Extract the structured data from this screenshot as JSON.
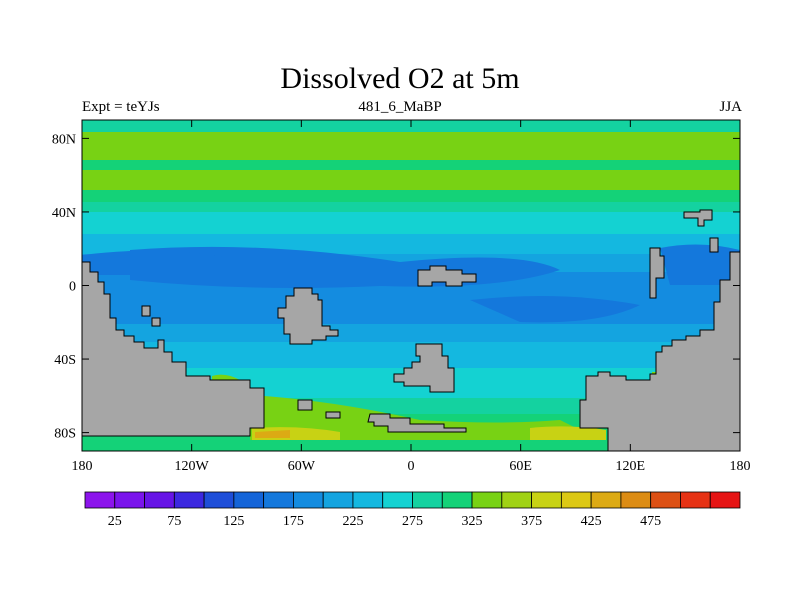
{
  "title": "Dissolved O2 at 5m",
  "subtitle_left": "Expt = teYJs",
  "subtitle_center": "481_6_MaBP",
  "subtitle_right": "JJA",
  "map": {
    "lon_ticks": [
      "180",
      "120W",
      "60W",
      "0",
      "60E",
      "120E",
      "180"
    ],
    "lat_ticks": [
      "80N",
      "40N",
      "0",
      "40S",
      "80S"
    ],
    "land_color": "#a6a6a6"
  },
  "colorbar": {
    "colors": [
      "#8c14ec",
      "#7a14ec",
      "#6614e6",
      "#3c28e0",
      "#1e4ed8",
      "#1464d8",
      "#1478dc",
      "#148ce0",
      "#14a4e0",
      "#14b8e0",
      "#14d2d2",
      "#14d2a0",
      "#14d278",
      "#78d214",
      "#a0d214",
      "#c8d214",
      "#dcc814",
      "#dcaa14",
      "#dc8c14",
      "#dc5014",
      "#e63214",
      "#e61414"
    ],
    "labels": [
      "25",
      "75",
      "125",
      "175",
      "225",
      "275",
      "325",
      "375",
      "425",
      "475"
    ]
  }
}
